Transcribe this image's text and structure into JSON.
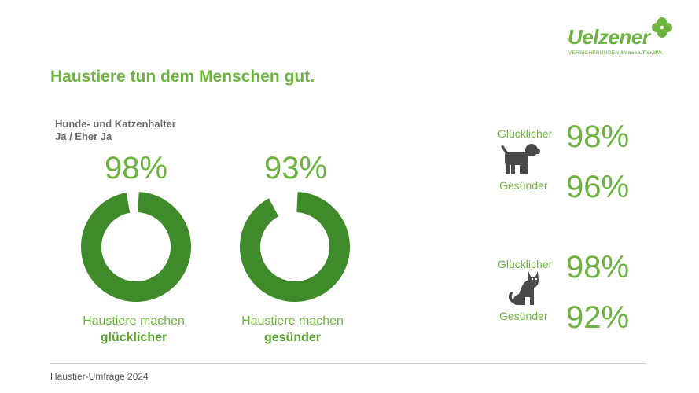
{
  "logo": {
    "word": "Uelzener",
    "tag_prefix": "VERSICHERUNGEN",
    "tag_slogan": "Mensch.Tier.Wir.",
    "icon": "clover-icon"
  },
  "title": "Haustiere tun dem Menschen gut.",
  "subtitle_line1": "Hunde- und Katzenhalter",
  "subtitle_line2": "Ja / Eher Ja",
  "colors": {
    "accent": "#6db33f",
    "donut": "#3f8a2a",
    "icon": "#4a4a4a"
  },
  "chart_data": [
    {
      "type": "pie",
      "subtype": "donut",
      "value": 98,
      "value_label": "98%",
      "caption_line1": "Haustiere machen",
      "caption_line2": "glücklicher"
    },
    {
      "type": "pie",
      "subtype": "donut",
      "value": 93,
      "value_label": "93%",
      "caption_line1": "Haustiere machen",
      "caption_line2": "gesünder"
    }
  ],
  "pets": [
    {
      "icon": "dog-icon",
      "happier_label": "Glücklicher",
      "happier_value": "98%",
      "healthier_label": "Gesünder",
      "healthier_value": "96%"
    },
    {
      "icon": "cat-icon",
      "happier_label": "Glücklicher",
      "happier_value": "98%",
      "healthier_label": "Gesünder",
      "healthier_value": "92%"
    }
  ],
  "footer": "Haustier-Umfrage 2024"
}
